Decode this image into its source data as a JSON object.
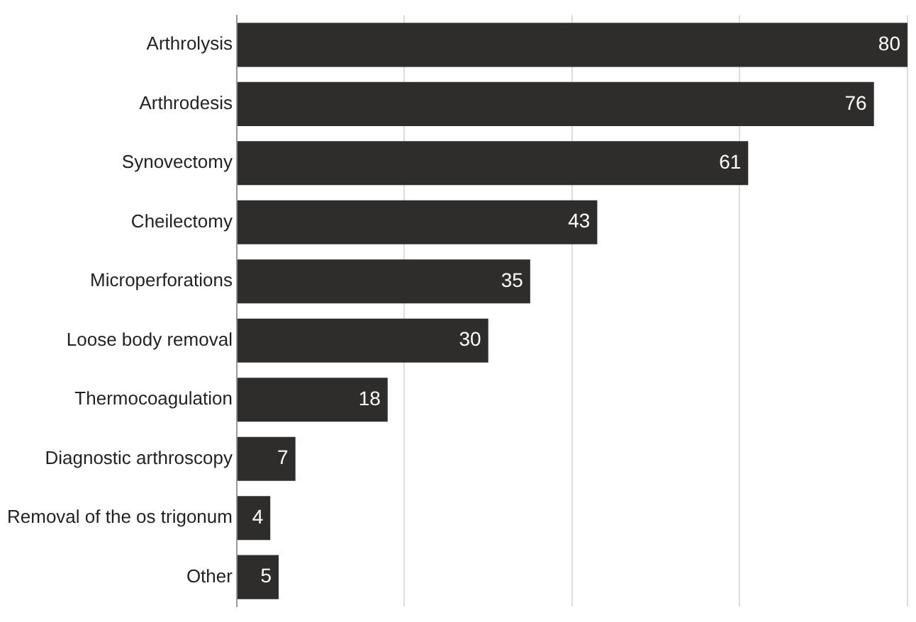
{
  "chart_data": {
    "type": "bar",
    "orientation": "horizontal",
    "categories": [
      "Arthrolysis",
      "Arthrodesis",
      "Synovectomy",
      "Cheilectomy",
      "Microperforations",
      "Loose body removal",
      "Thermocoagulation",
      "Diagnostic arthroscopy",
      "Removal of the os trigonum",
      "Other"
    ],
    "values": [
      80,
      76,
      61,
      43,
      35,
      30,
      18,
      7,
      4,
      5
    ],
    "color": "#2f2d2b",
    "xlim": [
      0,
      80
    ],
    "xticks": [
      {
        "value": 0,
        "label": null
      },
      {
        "value": 20,
        "label": null
      },
      {
        "value": 40,
        "label": null
      },
      {
        "value": 60,
        "label": null
      },
      {
        "value": 80,
        "label": null
      }
    ],
    "grid": "x",
    "tick_labels": "y",
    "data_labels": true
  }
}
